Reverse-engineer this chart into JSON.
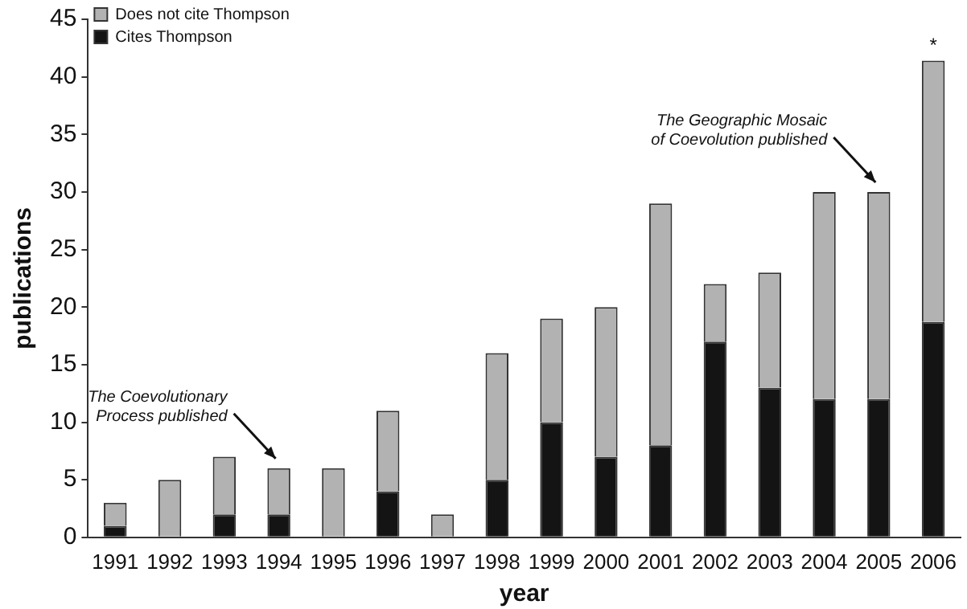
{
  "chart_data": {
    "type": "bar",
    "stacked": true,
    "xlabel": "year",
    "ylabel": "publications",
    "categories": [
      "1991",
      "1992",
      "1993",
      "1994",
      "1995",
      "1996",
      "1997",
      "1998",
      "1999",
      "2000",
      "2001",
      "2002",
      "2003",
      "2004",
      "2005",
      "2006"
    ],
    "series": [
      {
        "name": "Cites Thompson",
        "color": "#141414",
        "values": [
          1,
          0,
          2,
          2,
          0,
          4,
          0,
          5,
          10,
          7,
          8,
          17,
          13,
          12,
          12,
          18.7
        ]
      },
      {
        "name": "Does not cite Thompson",
        "color": "#b2b2b2",
        "values": [
          2,
          5,
          5,
          4,
          6,
          7,
          2,
          11,
          9,
          13,
          21,
          5,
          10,
          18,
          18,
          22.7
        ]
      }
    ],
    "ylim": [
      0,
      45
    ],
    "yticks": [
      0,
      5,
      10,
      15,
      20,
      25,
      30,
      35,
      40,
      45
    ],
    "grid": false,
    "legend": "top left",
    "annotations": [
      {
        "text": "The Coevolutionary Process published",
        "x": "1994",
        "y": 6
      },
      {
        "text": "The Geographic Mosaic of Coevolution published",
        "x": "2005",
        "y": 30
      },
      {
        "text": "*",
        "x": "2006",
        "y": 41.4
      }
    ]
  }
}
